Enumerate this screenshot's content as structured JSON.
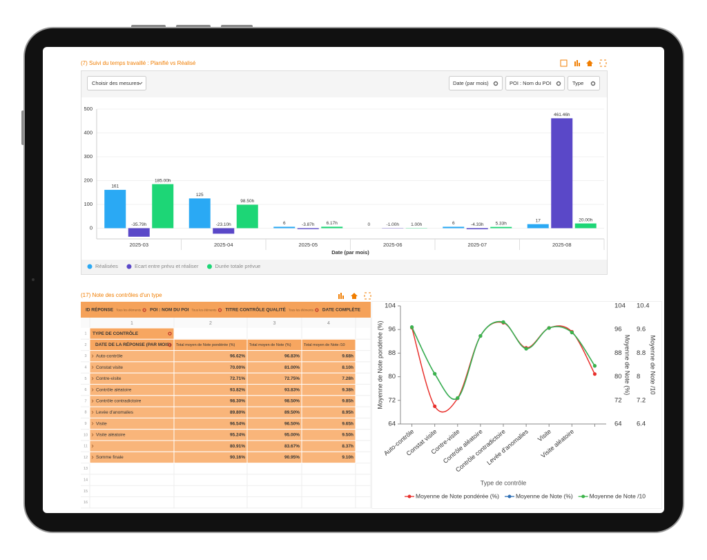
{
  "panels": [
    {
      "title": "(7) Suivi du temps travaillé : Planifié vs Réalisé",
      "buttons": [
        "Choisir des mesures",
        "Date (par mois)",
        "POI : Nom du POI",
        "Type"
      ]
    },
    {
      "title": "(17) Note des contrôles d'un type"
    }
  ],
  "table": {
    "filters": [
      {
        "label": "ID RÉPONSE",
        "hint": "Tous les éléments"
      },
      {
        "label": "POI : NOM DU POI",
        "hint": "Tous les éléments"
      },
      {
        "label": "TITRE CONTRÔLE QUALITÉ",
        "hint": "Tous les éléments"
      },
      {
        "label": "DATE COMPLÈTE"
      }
    ],
    "column_numbers": [
      1,
      2,
      3,
      4
    ],
    "row_numbers": [
      1,
      2,
      3,
      4,
      5,
      6,
      7,
      8,
      9,
      10,
      11,
      12,
      13,
      14,
      15,
      16
    ],
    "row_header": "TYPE DE CONTRÔLE",
    "header": [
      "DATE DE LA RÉPONSE (PAR MOIS)",
      "Total moyen de Note pondérée (%)",
      "Total moyen de Note (%)",
      "Total moyen de Note /10"
    ],
    "rows": [
      [
        "Auto-contrôle",
        "96.62%",
        "96.83%",
        "9.68h"
      ],
      [
        "Constat visite",
        "70.00%",
        "81.00%",
        "8.10h"
      ],
      [
        "Contre-visite",
        "72.71%",
        "72.75%",
        "7.28h"
      ],
      [
        "Contrôle aléatoire",
        "93.82%",
        "93.83%",
        "9.38h"
      ],
      [
        "Contrôle contradictoire",
        "98.30%",
        "98.50%",
        "9.85h"
      ],
      [
        "Levée d'anomalies",
        "89.80%",
        "89.50%",
        "8.95h"
      ],
      [
        "Visite",
        "96.54%",
        "96.50%",
        "9.65h"
      ],
      [
        "Visite aléatoire",
        "95.24%",
        "95.00%",
        "9.50h"
      ],
      [
        null,
        "80.91%",
        "83.67%",
        "8.37h"
      ],
      [
        "Somme finale",
        "90.16%",
        "90.95%",
        "9.10h"
      ]
    ]
  },
  "chart_data": [
    {
      "type": "bar",
      "x_label": "Date (par mois)",
      "categories": [
        "2025-03",
        "2025-04",
        "2025-05",
        "2025-06",
        "2025-07",
        "2025-08"
      ],
      "series": [
        {
          "name": "Réalisées",
          "color": "#2aa9f4",
          "values": [
            161,
            125,
            6,
            0,
            6,
            17
          ]
        },
        {
          "name": "Ecart entre prévu et réaliser",
          "color": "#5a48c8",
          "values": [
            -35.79,
            -23.1,
            -3.87,
            -1,
            -4.33,
            461.46
          ],
          "value_labels": [
            "-35.79h",
            "-23.10h",
            "-3.87h",
            "-1.00h",
            "-4.33h",
            "461.46h"
          ]
        },
        {
          "name": "Durée totale prévue",
          "color": "#1dd676",
          "values": [
            185,
            98.5,
            6.17,
            1,
            5.33,
            20
          ],
          "value_labels": [
            "185.00h",
            "98.50h",
            "6.17h",
            "1.00h",
            "5.33h",
            "20.00h"
          ]
        }
      ],
      "ylim": [
        -45,
        500
      ],
      "yticks": [
        0,
        100,
        200,
        300,
        400,
        500
      ],
      "grid": true,
      "legend": "bottom"
    },
    {
      "type": "line",
      "x_label": "Type de contrôle",
      "y_label": "Moyenne de Note pondérée (%)",
      "y2_label": "Moyenne de Note (%)",
      "y3_label": "Moyenne de Note /10",
      "categories": [
        "Auto-contrôle",
        "Constat visite",
        "Contre-visite",
        "Contrôle aléatoire",
        "Contrôle contradictoire",
        "Levée d'anomalies",
        "Visite",
        "Visite aléatoire",
        null
      ],
      "series": [
        {
          "name": "Moyenne de Note pondérée (%)",
          "color": "#e8302c",
          "values": [
            96.62,
            70.0,
            72.71,
            93.82,
            98.3,
            89.8,
            96.54,
            95.24,
            80.91
          ]
        },
        {
          "name": "Moyenne de Note (%)",
          "color": "#2f6fb5",
          "axis": "y2",
          "values": [
            96.83,
            81.0,
            72.75,
            93.83,
            98.5,
            89.5,
            96.5,
            95.0,
            83.67
          ]
        },
        {
          "name": "Moyenne de Note /10",
          "color": "#3cb44a",
          "axis": "y3",
          "values": [
            9.68,
            8.1,
            7.28,
            9.38,
            9.85,
            8.95,
            9.65,
            9.5,
            8.37
          ]
        }
      ],
      "ylim": [
        64,
        104
      ],
      "yticks": [
        64,
        72,
        80,
        88,
        96,
        104
      ],
      "y2lim": [
        64,
        104
      ],
      "y2ticks": [
        64,
        72,
        80,
        88,
        96,
        104
      ],
      "y3lim": [
        6.4,
        10.4
      ],
      "y3ticks": [
        6.4,
        7.2,
        8,
        8.8,
        9.6,
        10.4
      ],
      "legend": "bottom"
    }
  ]
}
